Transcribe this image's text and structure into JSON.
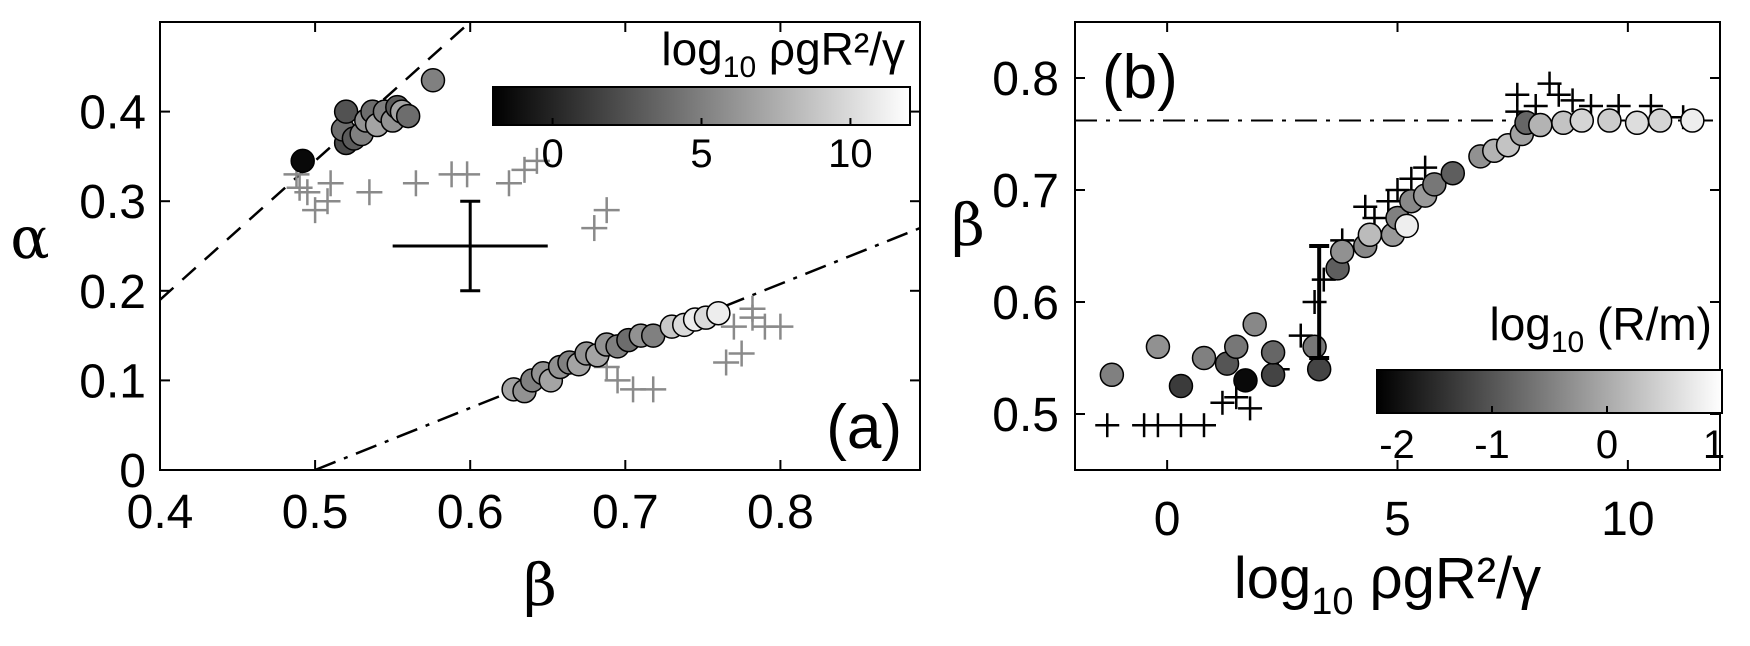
{
  "chart_data": [
    {
      "type": "scatter",
      "panel_label": "(a)",
      "xlabel": "β",
      "ylabel": "α",
      "xlim": [
        0.4,
        0.89
      ],
      "ylim": [
        0,
        0.5
      ],
      "xticks": [
        0.4,
        0.5,
        0.6,
        0.7,
        0.8
      ],
      "xtick_labels": [
        "0.4",
        "0.5",
        "0.6",
        "0.7",
        "0.8"
      ],
      "yticks": [
        0,
        0.1,
        0.2,
        0.3,
        0.4
      ],
      "ytick_labels": [
        "0",
        "0.1",
        "0.2",
        "0.3",
        "0.4"
      ],
      "colorbar": {
        "title_main": "log",
        "title_sub": "10",
        "title_rest": " ρgR²/γ",
        "range": [
          -2,
          12
        ],
        "ticks": [
          0,
          5,
          10
        ],
        "tick_labels": [
          "0",
          "5",
          "10"
        ],
        "colors": [
          "#000000",
          "#ffffff"
        ],
        "placement": "top-right"
      },
      "fit_lines": [
        {
          "style": "dashed",
          "x": [
            0.4,
            0.6
          ],
          "y": [
            0.19,
            0.5
          ]
        },
        {
          "style": "dash-dot",
          "x": [
            0.5,
            0.89
          ],
          "y": [
            0.0,
            0.27
          ]
        }
      ],
      "error_bar": {
        "x": 0.6,
        "y": 0.25,
        "xerr": 0.05,
        "yerr": 0.05
      },
      "circle_series": [
        {
          "x": 0.492,
          "y": 0.345,
          "c": -1.5
        },
        {
          "x": 0.52,
          "y": 0.365,
          "c": 2
        },
        {
          "x": 0.518,
          "y": 0.38,
          "c": 4
        },
        {
          "x": 0.52,
          "y": 0.4,
          "c": 2.5
        },
        {
          "x": 0.525,
          "y": 0.37,
          "c": 3
        },
        {
          "x": 0.53,
          "y": 0.375,
          "c": 5
        },
        {
          "x": 0.533,
          "y": 0.39,
          "c": 6
        },
        {
          "x": 0.537,
          "y": 0.4,
          "c": 4
        },
        {
          "x": 0.54,
          "y": 0.385,
          "c": 7
        },
        {
          "x": 0.545,
          "y": 0.4,
          "c": 5
        },
        {
          "x": 0.55,
          "y": 0.39,
          "c": 6
        },
        {
          "x": 0.553,
          "y": 0.405,
          "c": 3
        },
        {
          "x": 0.556,
          "y": 0.4,
          "c": 7
        },
        {
          "x": 0.56,
          "y": 0.395,
          "c": 4
        },
        {
          "x": 0.576,
          "y": 0.435,
          "c": 5
        },
        {
          "x": 0.628,
          "y": 0.09,
          "c": 7
        },
        {
          "x": 0.635,
          "y": 0.088,
          "c": 6
        },
        {
          "x": 0.64,
          "y": 0.1,
          "c": 5
        },
        {
          "x": 0.647,
          "y": 0.108,
          "c": 6
        },
        {
          "x": 0.652,
          "y": 0.1,
          "c": 7
        },
        {
          "x": 0.658,
          "y": 0.115,
          "c": 6
        },
        {
          "x": 0.664,
          "y": 0.12,
          "c": 5
        },
        {
          "x": 0.67,
          "y": 0.118,
          "c": 7
        },
        {
          "x": 0.675,
          "y": 0.13,
          "c": 6
        },
        {
          "x": 0.682,
          "y": 0.128,
          "c": 7
        },
        {
          "x": 0.688,
          "y": 0.14,
          "c": 6
        },
        {
          "x": 0.695,
          "y": 0.138,
          "c": 5
        },
        {
          "x": 0.702,
          "y": 0.145,
          "c": 4
        },
        {
          "x": 0.71,
          "y": 0.15,
          "c": 6
        },
        {
          "x": 0.718,
          "y": 0.15,
          "c": 5
        },
        {
          "x": 0.73,
          "y": 0.16,
          "c": 9
        },
        {
          "x": 0.738,
          "y": 0.162,
          "c": 10
        },
        {
          "x": 0.745,
          "y": 0.168,
          "c": 11
        },
        {
          "x": 0.752,
          "y": 0.17,
          "c": 10
        },
        {
          "x": 0.76,
          "y": 0.175,
          "c": 11
        }
      ],
      "plus_series": [
        {
          "x": 0.488,
          "y": 0.33
        },
        {
          "x": 0.49,
          "y": 0.315
        },
        {
          "x": 0.495,
          "y": 0.31
        },
        {
          "x": 0.5,
          "y": 0.29
        },
        {
          "x": 0.508,
          "y": 0.3
        },
        {
          "x": 0.51,
          "y": 0.32
        },
        {
          "x": 0.535,
          "y": 0.31
        },
        {
          "x": 0.565,
          "y": 0.32
        },
        {
          "x": 0.588,
          "y": 0.33
        },
        {
          "x": 0.598,
          "y": 0.33
        },
        {
          "x": 0.625,
          "y": 0.32
        },
        {
          "x": 0.635,
          "y": 0.335
        },
        {
          "x": 0.643,
          "y": 0.345
        },
        {
          "x": 0.68,
          "y": 0.27
        },
        {
          "x": 0.688,
          "y": 0.29
        },
        {
          "x": 0.688,
          "y": 0.115
        },
        {
          "x": 0.695,
          "y": 0.1
        },
        {
          "x": 0.705,
          "y": 0.09
        },
        {
          "x": 0.718,
          "y": 0.09
        },
        {
          "x": 0.765,
          "y": 0.12
        },
        {
          "x": 0.775,
          "y": 0.13
        },
        {
          "x": 0.77,
          "y": 0.16
        },
        {
          "x": 0.782,
          "y": 0.17
        },
        {
          "x": 0.79,
          "y": 0.16
        },
        {
          "x": 0.8,
          "y": 0.16
        },
        {
          "x": 0.782,
          "y": 0.18
        }
      ]
    },
    {
      "type": "scatter",
      "panel_label": "(b)",
      "xlabel_main": "log",
      "xlabel_sub": "10",
      "xlabel_rest": " ρgR²/γ",
      "ylabel": "β",
      "xlim": [
        -2,
        12
      ],
      "ylim": [
        0.45,
        0.85
      ],
      "xticks": [
        0,
        5,
        10
      ],
      "xtick_labels": [
        "0",
        "5",
        "10"
      ],
      "yticks": [
        0.5,
        0.6,
        0.7,
        0.8
      ],
      "ytick_labels": [
        "0.5",
        "0.6",
        "0.7",
        "0.8"
      ],
      "reference_line": {
        "style": "dash-dot",
        "y": 0.762
      },
      "error_bar": {
        "x": 3.3,
        "y": 0.6,
        "yerr": 0.05
      },
      "colorbar": {
        "title_main": "log",
        "title_sub": "10",
        "title_rest": " (R/m)",
        "range": [
          -2,
          1
        ],
        "ticks": [
          -2,
          -1,
          0,
          1
        ],
        "tick_labels": [
          "-2",
          "-1",
          "0",
          "1"
        ],
        "colors": [
          "#000000",
          "#ffffff"
        ],
        "placement": "bottom-right"
      },
      "circle_series": [
        {
          "x": -1.2,
          "y": 0.535,
          "c": -0.5
        },
        {
          "x": -0.2,
          "y": 0.56,
          "c": -0.3
        },
        {
          "x": 0.3,
          "y": 0.525,
          "c": -1.3
        },
        {
          "x": 0.8,
          "y": 0.55,
          "c": -0.5
        },
        {
          "x": 1.3,
          "y": 0.545,
          "c": -1.0
        },
        {
          "x": 1.5,
          "y": 0.56,
          "c": -0.6
        },
        {
          "x": 1.7,
          "y": 0.53,
          "c": -1.9
        },
        {
          "x": 1.9,
          "y": 0.58,
          "c": -0.4
        },
        {
          "x": 2.3,
          "y": 0.535,
          "c": -1.2
        },
        {
          "x": 2.3,
          "y": 0.555,
          "c": -0.8
        },
        {
          "x": 3.2,
          "y": 0.56,
          "c": -0.6
        },
        {
          "x": 3.3,
          "y": 0.54,
          "c": -1.2
        },
        {
          "x": 3.7,
          "y": 0.63,
          "c": -0.9
        },
        {
          "x": 3.8,
          "y": 0.645,
          "c": -0.3
        },
        {
          "x": 4.3,
          "y": 0.65,
          "c": -0.4
        },
        {
          "x": 4.4,
          "y": 0.66,
          "c": 0.2
        },
        {
          "x": 4.9,
          "y": 0.66,
          "c": -0.2
        },
        {
          "x": 5.0,
          "y": 0.675,
          "c": -0.5
        },
        {
          "x": 5.2,
          "y": 0.668,
          "c": 0.8
        },
        {
          "x": 5.3,
          "y": 0.69,
          "c": -0.4
        },
        {
          "x": 5.6,
          "y": 0.695,
          "c": -0.2
        },
        {
          "x": 5.8,
          "y": 0.705,
          "c": -0.6
        },
        {
          "x": 6.2,
          "y": 0.715,
          "c": -0.9
        },
        {
          "x": 6.8,
          "y": 0.73,
          "c": -0.3
        },
        {
          "x": 7.1,
          "y": 0.735,
          "c": 0.1
        },
        {
          "x": 7.4,
          "y": 0.74,
          "c": 0.3
        },
        {
          "x": 7.7,
          "y": 0.75,
          "c": -0.1
        },
        {
          "x": 7.8,
          "y": 0.76,
          "c": -0.8
        },
        {
          "x": 8.1,
          "y": 0.758,
          "c": 0.1
        },
        {
          "x": 8.6,
          "y": 0.76,
          "c": 0.3
        },
        {
          "x": 9.0,
          "y": 0.762,
          "c": 0.5
        },
        {
          "x": 9.6,
          "y": 0.762,
          "c": 0.4
        },
        {
          "x": 10.2,
          "y": 0.76,
          "c": 0.6
        },
        {
          "x": 10.7,
          "y": 0.762,
          "c": 0.5
        },
        {
          "x": 11.4,
          "y": 0.762,
          "c": 0.8
        }
      ],
      "plus_series": [
        {
          "x": -1.3,
          "y": 0.49
        },
        {
          "x": -0.5,
          "y": 0.49
        },
        {
          "x": -0.2,
          "y": 0.49
        },
        {
          "x": 0.3,
          "y": 0.49
        },
        {
          "x": 0.8,
          "y": 0.49
        },
        {
          "x": 1.2,
          "y": 0.51
        },
        {
          "x": 1.5,
          "y": 0.515
        },
        {
          "x": 1.8,
          "y": 0.505
        },
        {
          "x": 2.4,
          "y": 0.54
        },
        {
          "x": 2.9,
          "y": 0.57
        },
        {
          "x": 3.2,
          "y": 0.6
        },
        {
          "x": 3.4,
          "y": 0.62
        },
        {
          "x": 3.8,
          "y": 0.655
        },
        {
          "x": 4.3,
          "y": 0.685
        },
        {
          "x": 4.5,
          "y": 0.675
        },
        {
          "x": 4.8,
          "y": 0.69
        },
        {
          "x": 5.0,
          "y": 0.7
        },
        {
          "x": 5.3,
          "y": 0.71
        },
        {
          "x": 5.6,
          "y": 0.72
        },
        {
          "x": 7.6,
          "y": 0.77
        },
        {
          "x": 7.6,
          "y": 0.785
        },
        {
          "x": 8.0,
          "y": 0.775
        },
        {
          "x": 8.3,
          "y": 0.795
        },
        {
          "x": 8.5,
          "y": 0.785
        },
        {
          "x": 8.8,
          "y": 0.78
        },
        {
          "x": 9.2,
          "y": 0.775
        },
        {
          "x": 9.8,
          "y": 0.775
        },
        {
          "x": 10.5,
          "y": 0.775
        },
        {
          "x": 11.2,
          "y": 0.765
        }
      ]
    }
  ]
}
